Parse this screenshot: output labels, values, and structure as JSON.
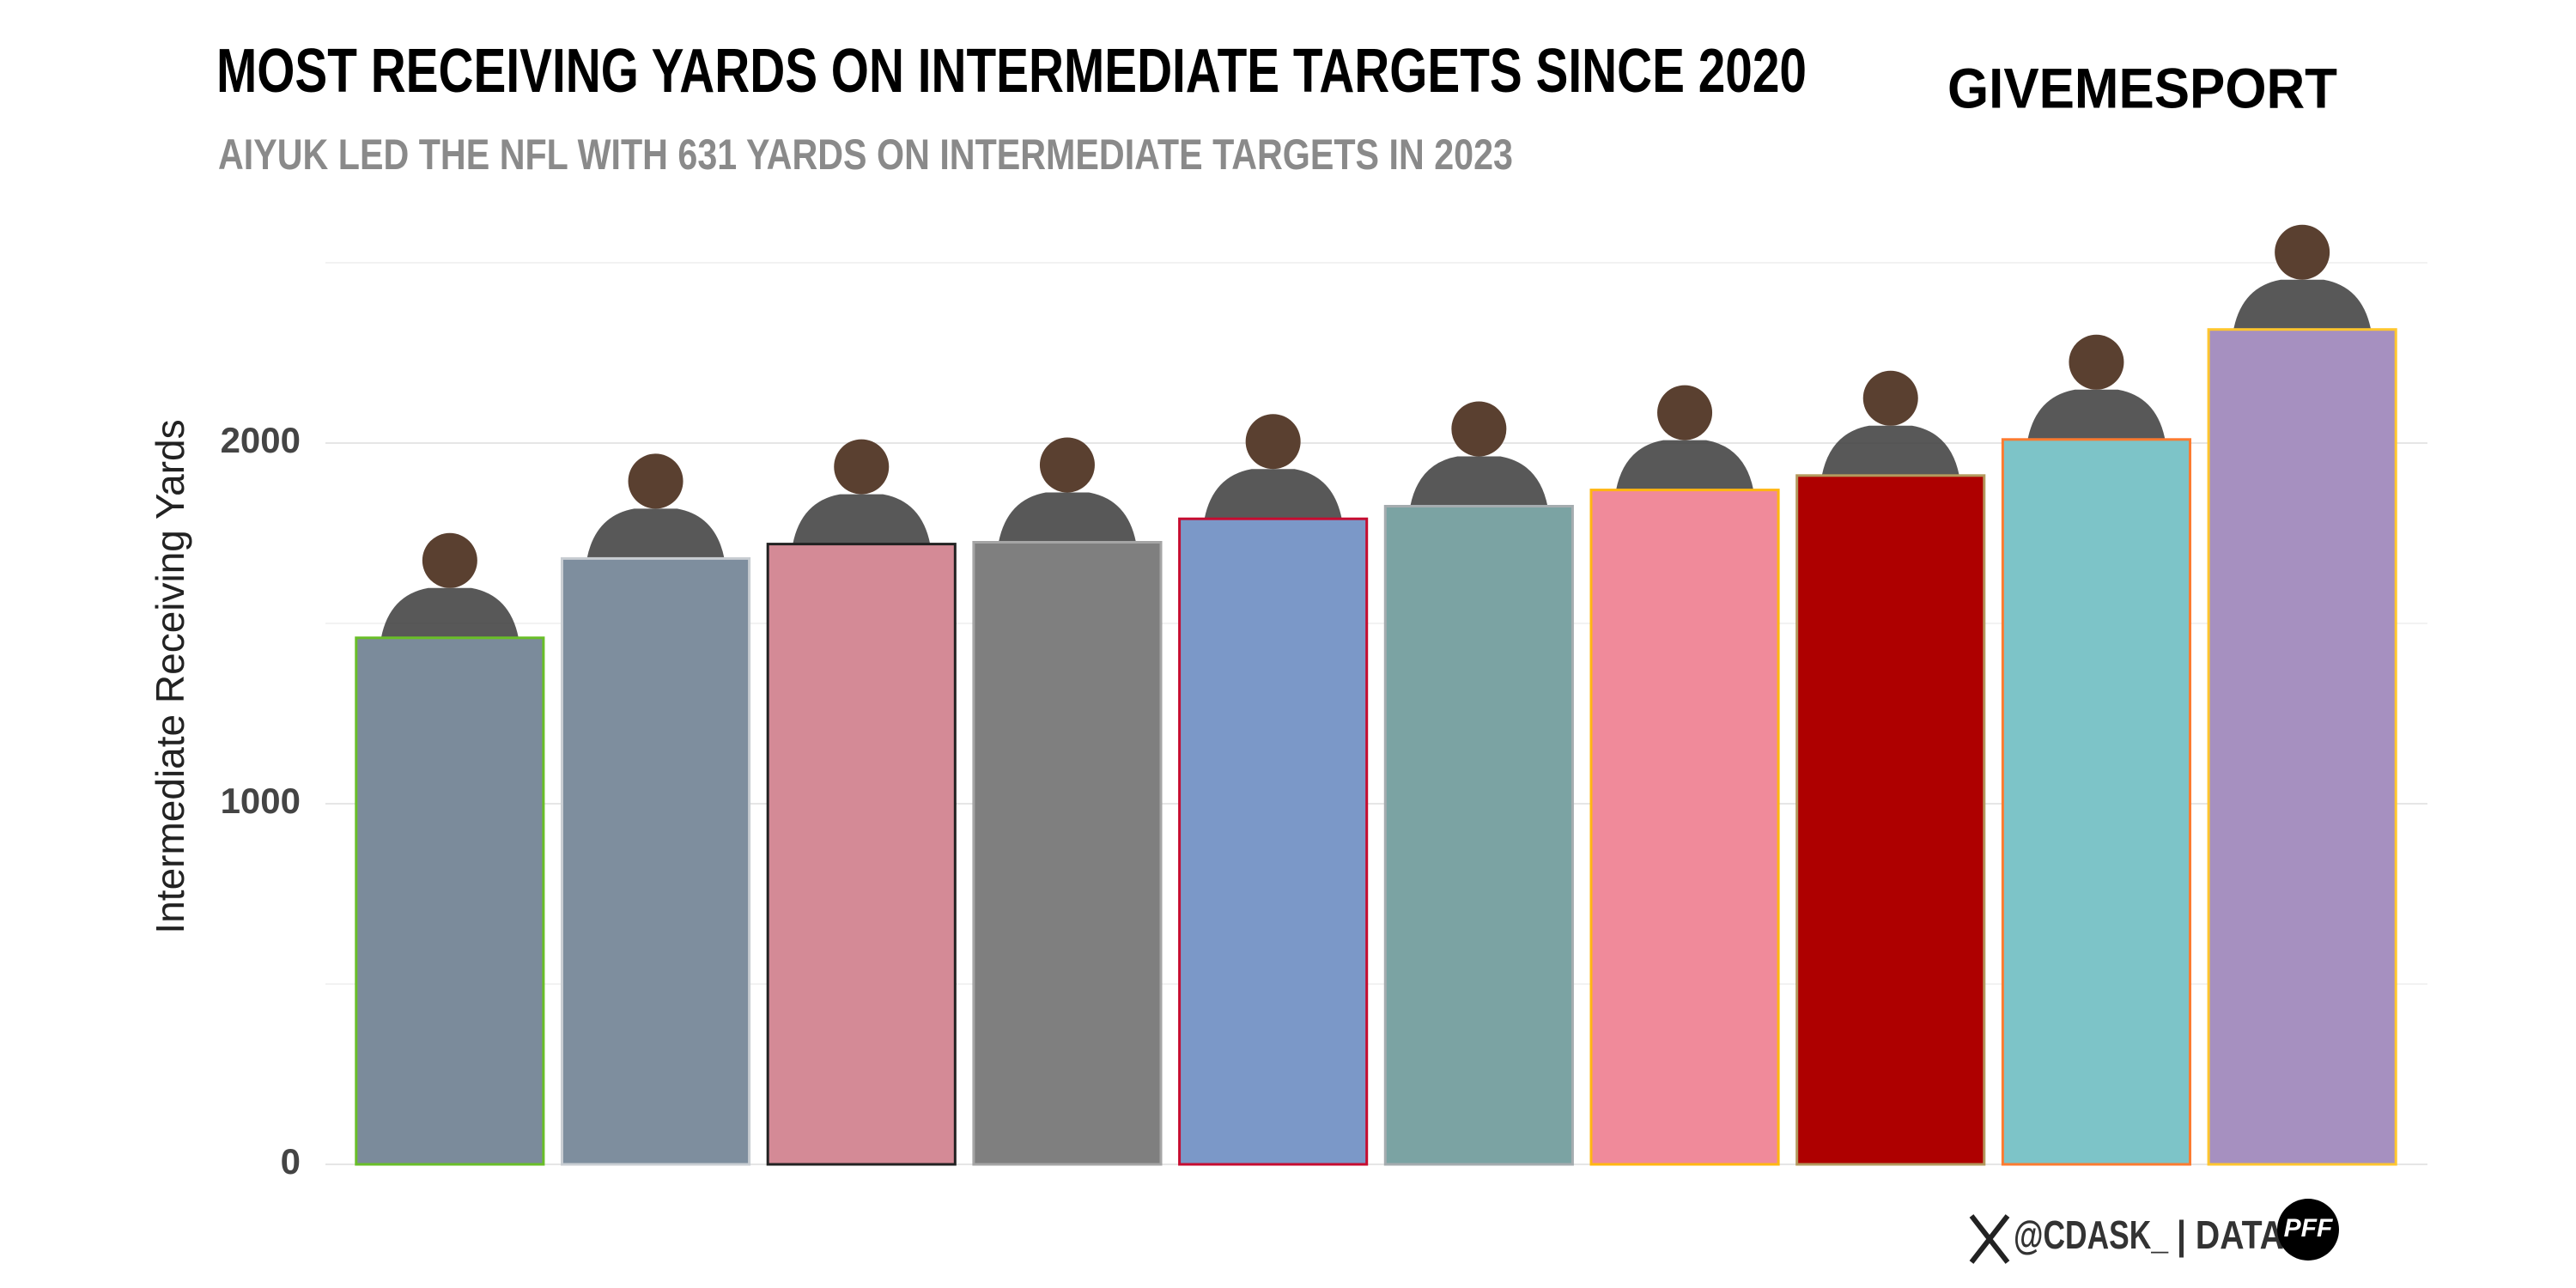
{
  "chart_data": {
    "type": "bar",
    "title": "MOST RECEIVING YARDS ON INTERMEDIATE TARGETS SINCE 2020",
    "subtitle": "AIYUK LED THE NFL WITH 631 YARDS ON INTERMEDIATE TARGETS IN 2023",
    "brand": "GIVEMESPORT",
    "y_label": "Intermediate Receiving Yards",
    "credit": "@CDASK_",
    "source": "| DATA",
    "source_logo": "PFF",
    "values": [
      1460,
      1680,
      1720,
      1725,
      1790,
      1825,
      1870,
      1910,
      2010,
      2315
    ],
    "colors": [
      "#7b8b9b",
      "#7e8e9e",
      "#d48a96",
      "#7f7f7f",
      "#7b98c8",
      "#7ba3a3",
      "#f08a9a",
      "#ae0000",
      "#7dc4c8",
      "#a690c0"
    ],
    "edge_colors": [
      "#69be28",
      "#c8cdd2",
      "#222222",
      "#a5a5a5",
      "#c60c30",
      "#a5acaf",
      "#ffb612",
      "#b3995d",
      "#fc7b30",
      "#ffc62f"
    ],
    "ylim": [
      0,
      2500
    ],
    "yticks": [
      0,
      1000,
      2000
    ],
    "minor_gridlines": [
      500,
      1500,
      2500
    ],
    "grid": true
  }
}
